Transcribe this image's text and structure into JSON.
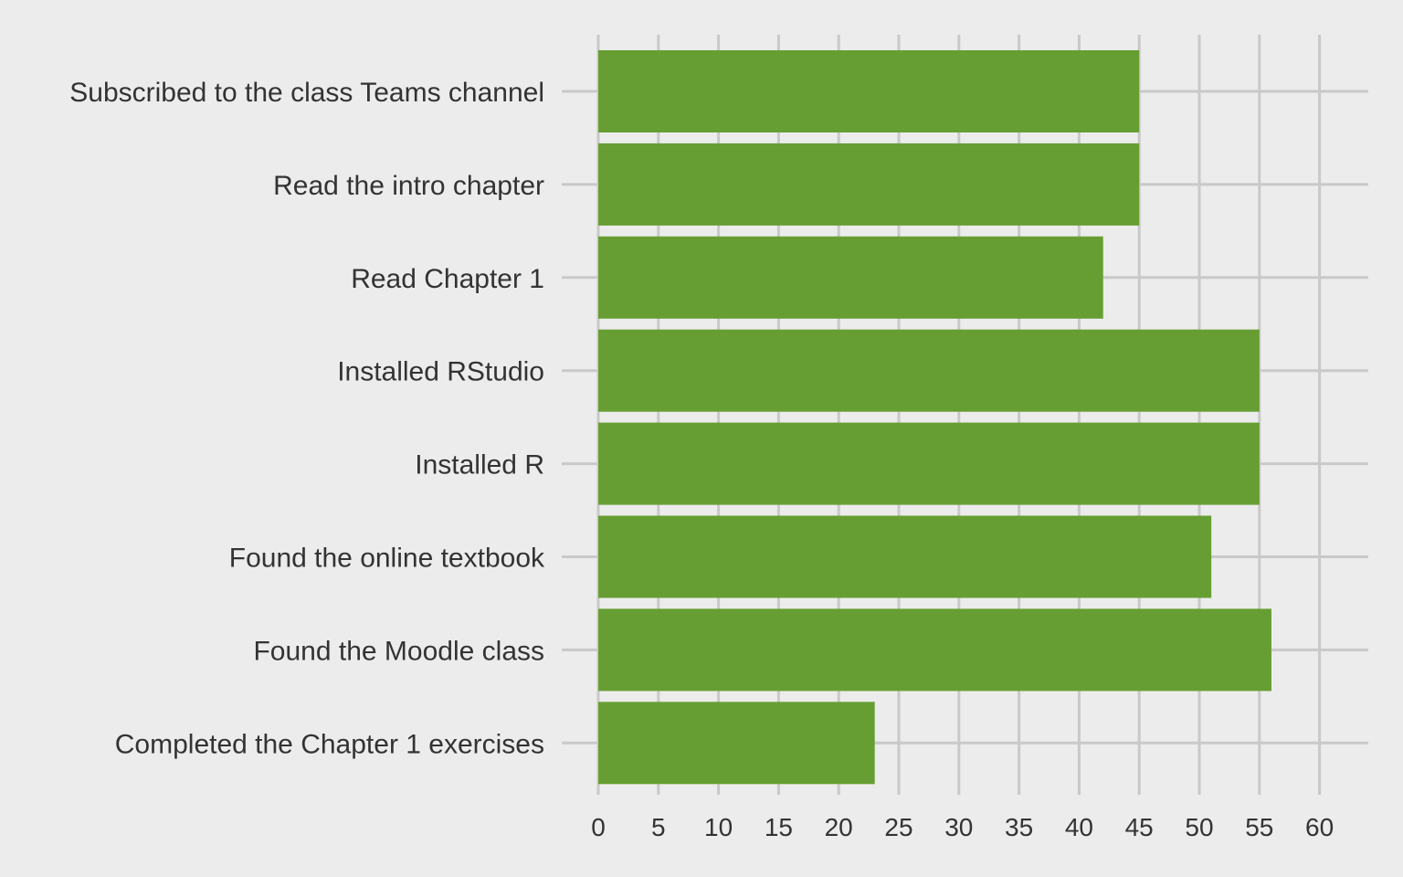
{
  "chart_data": {
    "type": "bar",
    "orientation": "horizontal",
    "categories": [
      "Subscribed to the class Teams channel",
      "Read the intro chapter",
      "Read Chapter 1",
      "Installed RStudio",
      "Installed R",
      "Found the online textbook",
      "Found the Moodle class",
      "Completed the Chapter 1 exercises"
    ],
    "values": [
      45,
      45,
      42,
      55,
      55,
      51,
      56,
      23
    ],
    "title": "",
    "xlabel": "",
    "ylabel": "",
    "xlim": [
      0,
      63
    ],
    "xticks": [
      0,
      5,
      10,
      15,
      20,
      25,
      30,
      35,
      40,
      45,
      50,
      55,
      60
    ],
    "grid": true,
    "legend": "none",
    "colors": {
      "bar": "#679e33",
      "background": "#ececec",
      "grid": "#c9c9c9",
      "text": "#333333"
    }
  }
}
